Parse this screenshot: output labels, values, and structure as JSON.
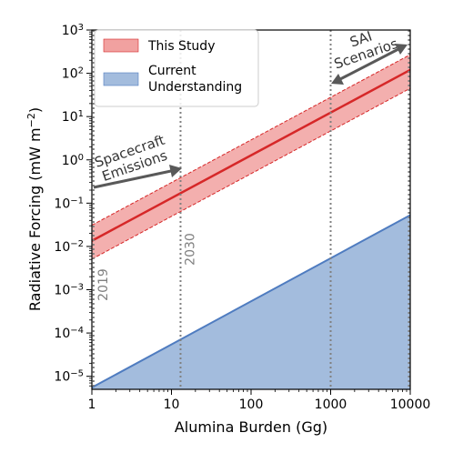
{
  "chart_data": {
    "type": "line",
    "xlabel": "Alumina Burden (Gg)",
    "ylabel": "Radiative Forcing (mW m",
    "ylabel_sup": "−2",
    "ylabel_close": ")",
    "xscale": "log",
    "yscale": "log",
    "xlim": [
      1,
      10000
    ],
    "ylim": [
      5e-06,
      1000
    ],
    "x_ticks": [
      {
        "value": 1,
        "label": "1"
      },
      {
        "value": 10,
        "label": "10"
      },
      {
        "value": 100,
        "label": "100"
      },
      {
        "value": 1000,
        "label": "1000"
      },
      {
        "value": 10000,
        "label": "10000"
      }
    ],
    "y_ticks": [
      {
        "value": 1e-05,
        "base": "10",
        "exp": "−5"
      },
      {
        "value": 0.0001,
        "base": "10",
        "exp": "−4"
      },
      {
        "value": 0.001,
        "base": "10",
        "exp": "−3"
      },
      {
        "value": 0.01,
        "base": "10",
        "exp": "−2"
      },
      {
        "value": 0.1,
        "base": "10",
        "exp": "−1"
      },
      {
        "value": 1,
        "base": "10",
        "exp": "0"
      },
      {
        "value": 10,
        "base": "10",
        "exp": "1"
      },
      {
        "value": 100,
        "base": "10",
        "exp": "2"
      },
      {
        "value": 1000,
        "base": "10",
        "exp": "3"
      }
    ],
    "series": [
      {
        "name": "This Study",
        "color": "#d62728",
        "fill": "#f1a1a0",
        "x": [
          1,
          10000
        ],
        "y": [
          0.0135,
          120
        ],
        "lower": [
          0.0051,
          45
        ],
        "upper": [
          0.031,
          270
        ]
      },
      {
        "name": "Current Understanding",
        "color": "#4f7cc0",
        "fill": "#a3bcdd",
        "x": [
          1,
          10000
        ],
        "y": [
          5.5e-06,
          0.053
        ]
      }
    ],
    "vlines": [
      {
        "x": 1.05,
        "label": "2019"
      },
      {
        "x": 13,
        "label": "2030"
      },
      {
        "x": 1000,
        "label": ""
      },
      {
        "x": 9600,
        "label": ""
      }
    ],
    "annotations": [
      {
        "line1": "Spacecraft",
        "line2": "Emissions"
      },
      {
        "line1": "SAI",
        "line2": "Scenarios"
      }
    ],
    "legend_placement": "upper-left",
    "legend": [
      {
        "lines": [
          "This Study"
        ]
      },
      {
        "lines": [
          "Current",
          "Understanding"
        ]
      }
    ]
  }
}
